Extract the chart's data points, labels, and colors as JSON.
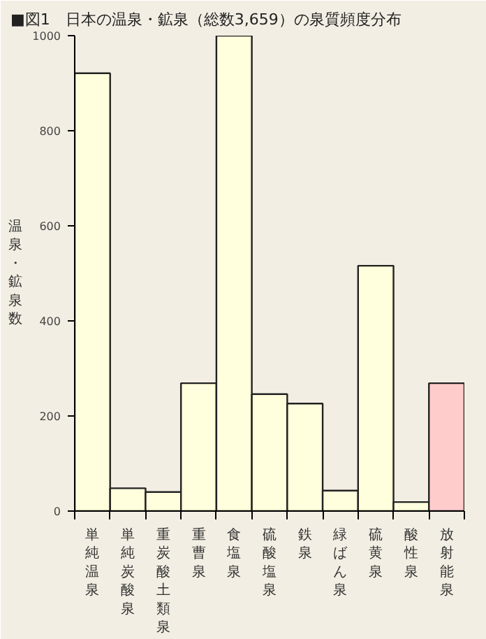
{
  "chart_data": {
    "type": "bar",
    "title": "■図1　日本の温泉・鉱泉（総数3,659）の泉質頻度分布",
    "ylabel": "温泉・鉱泉数",
    "categories": [
      "単純温泉",
      "単純炭酸泉",
      "重炭酸土類泉",
      "重曹泉",
      "食塩泉",
      "硫酸塩泉",
      "鉄泉",
      "緑ばん泉",
      "硫黄泉",
      "酸性泉",
      "放射能泉"
    ],
    "values": [
      921,
      48,
      40,
      269,
      1000,
      246,
      226,
      43,
      516,
      19,
      269
    ],
    "colors": [
      "#ffffdd",
      "#ffffdd",
      "#ffffdd",
      "#ffffdd",
      "#ffffdd",
      "#ffffdd",
      "#ffffdd",
      "#ffffdd",
      "#ffffdd",
      "#ffffdd",
      "#ffcccc"
    ],
    "ylim": [
      0,
      1000
    ],
    "yticks": [
      0,
      200,
      400,
      600,
      800,
      1000
    ],
    "grid": false,
    "legend": false
  }
}
